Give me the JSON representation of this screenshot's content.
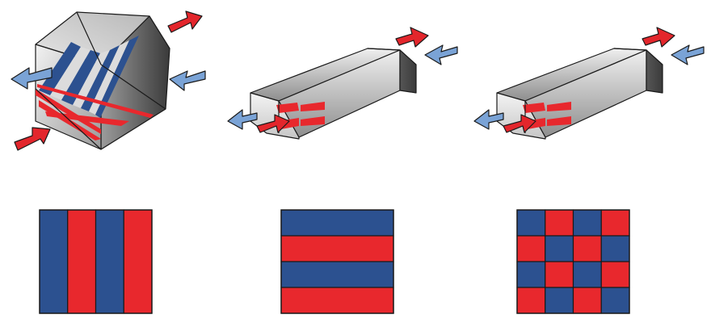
{
  "colors": {
    "blue": "#2c5190",
    "red": "#e8282d",
    "arrow_blue": "#7aa3d6",
    "arrow_red": "#e3262c",
    "stripe_light": "#d9d9d9",
    "outline": "#1a1a1a"
  },
  "exchangers": [
    {
      "id": "cross-flow",
      "flow": "cross"
    },
    {
      "id": "counter-flow-layered",
      "flow": "counter"
    },
    {
      "id": "counter-flow-checkered",
      "flow": "counter"
    }
  ],
  "patterns": [
    {
      "id": "vertical-stripes",
      "rows": 1,
      "cols": 4,
      "cells": [
        [
          "blue",
          "red",
          "blue",
          "red"
        ]
      ]
    },
    {
      "id": "horizontal-stripes",
      "rows": 4,
      "cols": 1,
      "cells": [
        [
          "blue"
        ],
        [
          "red"
        ],
        [
          "blue"
        ],
        [
          "red"
        ]
      ]
    },
    {
      "id": "checkerboard",
      "rows": 4,
      "cols": 4,
      "cells": [
        [
          "blue",
          "red",
          "blue",
          "red"
        ],
        [
          "red",
          "blue",
          "red",
          "blue"
        ],
        [
          "blue",
          "red",
          "blue",
          "red"
        ],
        [
          "red",
          "blue",
          "red",
          "blue"
        ]
      ]
    }
  ]
}
